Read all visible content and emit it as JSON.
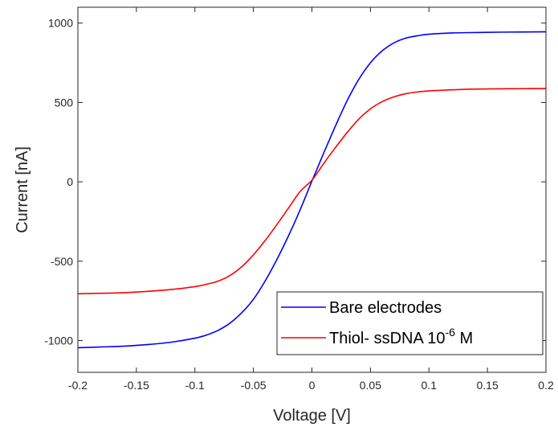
{
  "chart_data": {
    "type": "line",
    "xlabel": "Voltage [V]",
    "ylabel": "Current [nA]",
    "xlim": [
      -0.2,
      0.2
    ],
    "ylim": [
      -1200,
      1100
    ],
    "xticks": [
      "-0.2",
      "-0.15",
      "-0.1",
      "-0.05",
      "0",
      "0.05",
      "0.1",
      "0.15",
      "0.2"
    ],
    "yticks": [
      "-1000",
      "-500",
      "0",
      "500",
      "1000"
    ],
    "grid": false,
    "legend_position": "bottom-right",
    "series": [
      {
        "name": "Bare electrodes",
        "color": "#0000ff",
        "x": [
          -0.2,
          -0.18,
          -0.16,
          -0.14,
          -0.12,
          -0.1,
          -0.09,
          -0.08,
          -0.07,
          -0.06,
          -0.05,
          -0.04,
          -0.03,
          -0.02,
          -0.01,
          0,
          0.01,
          0.02,
          0.03,
          0.04,
          0.05,
          0.06,
          0.07,
          0.08,
          0.09,
          0.1,
          0.12,
          0.14,
          0.16,
          0.18,
          0.2
        ],
        "y": [
          -1045,
          -1040,
          -1035,
          -1025,
          -1010,
          -985,
          -965,
          -935,
          -890,
          -825,
          -740,
          -625,
          -490,
          -340,
          -175,
          5,
          180,
          350,
          510,
          645,
          750,
          825,
          875,
          905,
          920,
          930,
          938,
          941,
          943,
          944,
          945
        ]
      },
      {
        "name": "Thiol- ssDNA 10-6 M",
        "color": "#ff0000",
        "x": [
          -0.2,
          -0.18,
          -0.16,
          -0.14,
          -0.12,
          -0.1,
          -0.09,
          -0.08,
          -0.07,
          -0.06,
          -0.05,
          -0.04,
          -0.03,
          -0.02,
          -0.01,
          0,
          0.01,
          0.02,
          0.03,
          0.04,
          0.05,
          0.06,
          0.07,
          0.08,
          0.09,
          0.1,
          0.12,
          0.14,
          0.16,
          0.18,
          0.2
        ],
        "y": [
          -705,
          -702,
          -698,
          -690,
          -678,
          -660,
          -645,
          -625,
          -590,
          -535,
          -460,
          -370,
          -270,
          -165,
          -60,
          10,
          115,
          215,
          310,
          395,
          460,
          505,
          535,
          555,
          566,
          573,
          580,
          584,
          586,
          587,
          588
        ]
      }
    ],
    "legend": {
      "entries": [
        {
          "text": "Bare electrodes",
          "color": "#0000ff"
        },
        {
          "text": "Thiol- ssDNA 10",
          "sup": "-6",
          "tail": " M",
          "color": "#ff0000"
        }
      ]
    }
  }
}
